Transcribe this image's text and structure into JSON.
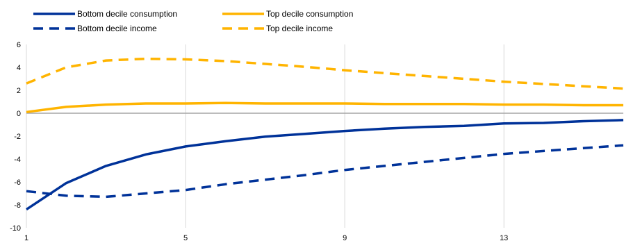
{
  "chart_data": {
    "type": "line",
    "title": "",
    "xlabel": "",
    "ylabel": "",
    "x": [
      1,
      2,
      3,
      4,
      5,
      6,
      7,
      8,
      9,
      10,
      11,
      12,
      13,
      14,
      15,
      16
    ],
    "xticks": [
      1,
      5,
      9,
      13
    ],
    "xticklabels": [
      "1",
      "5",
      "9",
      "13"
    ],
    "xlim": [
      1,
      16
    ],
    "ylim": [
      -10,
      6
    ],
    "yticks": [
      -10,
      -8,
      -6,
      -4,
      -2,
      0,
      2,
      4,
      6
    ],
    "yticklabels": [
      "-10",
      "-8",
      "-6",
      "-4",
      "-2",
      "0",
      "2",
      "4",
      "6"
    ],
    "grid": "vertical lines at x ticks",
    "legend_position": "top, two columns",
    "series": [
      {
        "name": "Bottom decile consumption",
        "color": "#003299",
        "style": "solid",
        "values": [
          -8.4,
          -6.1,
          -4.6,
          -3.6,
          -2.9,
          -2.45,
          -2.05,
          -1.8,
          -1.55,
          -1.35,
          -1.2,
          -1.1,
          -0.9,
          -0.85,
          -0.7,
          -0.6
        ]
      },
      {
        "name": "Top decile consumption",
        "color": "#FFB400",
        "style": "solid",
        "values": [
          0.1,
          0.55,
          0.75,
          0.85,
          0.85,
          0.9,
          0.85,
          0.85,
          0.85,
          0.8,
          0.8,
          0.8,
          0.75,
          0.75,
          0.7,
          0.7
        ]
      },
      {
        "name": "Bottom decile income",
        "color": "#003299",
        "style": "dashed",
        "values": [
          -6.8,
          -7.2,
          -7.3,
          -7.0,
          -6.7,
          -6.2,
          -5.8,
          -5.4,
          -4.95,
          -4.6,
          -4.25,
          -3.9,
          -3.55,
          -3.3,
          -3.05,
          -2.8
        ]
      },
      {
        "name": "Top decile income",
        "color": "#FFB400",
        "style": "dashed",
        "values": [
          2.6,
          4.0,
          4.6,
          4.75,
          4.7,
          4.55,
          4.3,
          4.05,
          3.75,
          3.5,
          3.25,
          3.0,
          2.75,
          2.55,
          2.35,
          2.15
        ]
      }
    ]
  }
}
